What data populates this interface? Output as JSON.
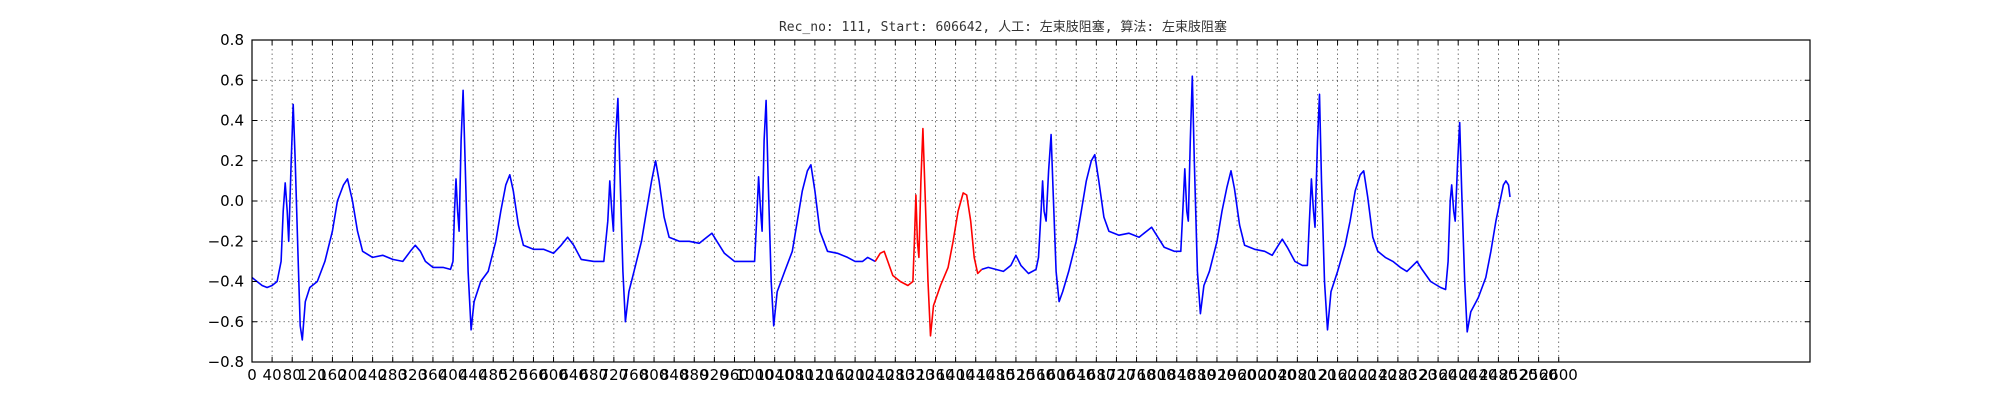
{
  "chart_data": {
    "type": "line",
    "title": "Rec_no: 111, Start: 606642, 人工: 左束肢阻塞, 算法: 左束肢阻塞",
    "xlabel": "",
    "ylabel": "",
    "xlim": [
      0,
      3100
    ],
    "ylim": [
      -0.8,
      0.8
    ],
    "xticks": [
      0,
      40,
      80,
      120,
      160,
      200,
      240,
      280,
      320,
      360,
      400,
      440,
      480,
      520,
      560,
      600,
      640,
      680,
      720,
      760,
      800,
      840,
      880,
      920,
      960,
      1000,
      1040,
      1080,
      1120,
      1160,
      1200,
      1240,
      1280,
      1320,
      1360,
      1400,
      1440,
      1480,
      1520,
      1560,
      1600,
      1640,
      1680,
      1720,
      1760,
      1800,
      1840,
      1880,
      1920,
      1960,
      2000,
      2040,
      2080,
      2120,
      2160,
      2200,
      2240,
      2280,
      2320,
      2360,
      2400,
      2440,
      2480,
      2520,
      2560,
      2600
    ],
    "yticks": [
      -0.8,
      -0.6,
      -0.4,
      -0.2,
      0.0,
      0.2,
      0.4,
      0.6,
      0.8
    ],
    "ytick_labels": [
      "−0.8",
      "−0.6",
      "−0.4",
      "−0.2",
      "0.0",
      "0.2",
      "0.4",
      "0.6",
      "0.8"
    ],
    "grid": true,
    "highlight_range": [
      1240,
      1440
    ],
    "colors": {
      "line": "#0000ff",
      "highlight": "#ff0000",
      "grid": "#555555",
      "axes": "#000000"
    },
    "series": [
      {
        "points": [
          [
            0,
            -0.38
          ],
          [
            10,
            -0.4
          ],
          [
            20,
            -0.42
          ],
          [
            30,
            -0.43
          ],
          [
            40,
            -0.42
          ],
          [
            50,
            -0.4
          ],
          [
            58,
            -0.3
          ],
          [
            62,
            -0.05
          ],
          [
            66,
            0.09
          ],
          [
            70,
            -0.05
          ],
          [
            73,
            -0.2
          ],
          [
            78,
            0.2
          ],
          [
            82,
            0.48
          ],
          [
            86,
            0.2
          ],
          [
            92,
            -0.3
          ],
          [
            96,
            -0.62
          ],
          [
            100,
            -0.69
          ],
          [
            106,
            -0.5
          ],
          [
            115,
            -0.43
          ],
          [
            130,
            -0.4
          ],
          [
            145,
            -0.3
          ],
          [
            160,
            -0.15
          ],
          [
            170,
            0.0
          ],
          [
            182,
            0.08
          ],
          [
            190,
            0.11
          ],
          [
            200,
            0.0
          ],
          [
            210,
            -0.15
          ],
          [
            220,
            -0.25
          ],
          [
            240,
            -0.28
          ],
          [
            260,
            -0.27
          ],
          [
            280,
            -0.29
          ],
          [
            300,
            -0.3
          ],
          [
            315,
            -0.25
          ],
          [
            325,
            -0.22
          ],
          [
            335,
            -0.25
          ],
          [
            345,
            -0.3
          ],
          [
            360,
            -0.33
          ],
          [
            380,
            -0.33
          ],
          [
            395,
            -0.34
          ],
          [
            400,
            -0.3
          ],
          [
            403,
            -0.05
          ],
          [
            406,
            0.11
          ],
          [
            409,
            -0.05
          ],
          [
            412,
            -0.15
          ],
          [
            416,
            0.3
          ],
          [
            420,
            0.55
          ],
          [
            424,
            0.2
          ],
          [
            430,
            -0.35
          ],
          [
            436,
            -0.64
          ],
          [
            442,
            -0.5
          ],
          [
            455,
            -0.4
          ],
          [
            470,
            -0.35
          ],
          [
            485,
            -0.2
          ],
          [
            495,
            -0.05
          ],
          [
            505,
            0.08
          ],
          [
            513,
            0.13
          ],
          [
            520,
            0.05
          ],
          [
            530,
            -0.12
          ],
          [
            540,
            -0.22
          ],
          [
            560,
            -0.24
          ],
          [
            580,
            -0.24
          ],
          [
            600,
            -0.26
          ],
          [
            615,
            -0.22
          ],
          [
            628,
            -0.18
          ],
          [
            640,
            -0.22
          ],
          [
            655,
            -0.29
          ],
          [
            680,
            -0.3
          ],
          [
            700,
            -0.3
          ],
          [
            708,
            -0.1
          ],
          [
            712,
            0.1
          ],
          [
            716,
            -0.05
          ],
          [
            719,
            -0.15
          ],
          [
            723,
            0.3
          ],
          [
            728,
            0.51
          ],
          [
            732,
            0.15
          ],
          [
            738,
            -0.35
          ],
          [
            743,
            -0.6
          ],
          [
            750,
            -0.45
          ],
          [
            760,
            -0.35
          ],
          [
            775,
            -0.2
          ],
          [
            785,
            -0.05
          ],
          [
            795,
            0.1
          ],
          [
            803,
            0.2
          ],
          [
            810,
            0.1
          ],
          [
            820,
            -0.08
          ],
          [
            830,
            -0.18
          ],
          [
            850,
            -0.2
          ],
          [
            870,
            -0.2
          ],
          [
            890,
            -0.21
          ],
          [
            905,
            -0.18
          ],
          [
            915,
            -0.16
          ],
          [
            925,
            -0.2
          ],
          [
            940,
            -0.26
          ],
          [
            960,
            -0.3
          ],
          [
            1000,
            -0.3
          ],
          [
            1004,
            -0.1
          ],
          [
            1008,
            0.12
          ],
          [
            1012,
            -0.05
          ],
          [
            1015,
            -0.15
          ],
          [
            1019,
            0.3
          ],
          [
            1023,
            0.5
          ],
          [
            1027,
            0.1
          ],
          [
            1033,
            -0.4
          ],
          [
            1038,
            -0.62
          ],
          [
            1045,
            -0.45
          ],
          [
            1060,
            -0.35
          ],
          [
            1075,
            -0.25
          ],
          [
            1085,
            -0.1
          ],
          [
            1095,
            0.05
          ],
          [
            1105,
            0.15
          ],
          [
            1112,
            0.18
          ],
          [
            1120,
            0.05
          ],
          [
            1130,
            -0.15
          ],
          [
            1145,
            -0.25
          ],
          [
            1165,
            -0.26
          ],
          [
            1185,
            -0.28
          ],
          [
            1200,
            -0.3
          ],
          [
            1215,
            -0.3
          ],
          [
            1225,
            -0.28
          ],
          [
            1240,
            -0.3
          ]
        ]
      },
      {
        "name": "highlight",
        "points": [
          [
            1240,
            -0.3
          ],
          [
            1250,
            -0.26
          ],
          [
            1258,
            -0.25
          ],
          [
            1265,
            -0.3
          ],
          [
            1275,
            -0.37
          ],
          [
            1290,
            -0.4
          ],
          [
            1305,
            -0.42
          ],
          [
            1315,
            -0.4
          ],
          [
            1318,
            -0.2
          ],
          [
            1321,
            0.03
          ],
          [
            1324,
            -0.2
          ],
          [
            1327,
            -0.28
          ],
          [
            1331,
            0.1
          ],
          [
            1335,
            0.36
          ],
          [
            1339,
            0.05
          ],
          [
            1345,
            -0.4
          ],
          [
            1350,
            -0.67
          ],
          [
            1356,
            -0.52
          ],
          [
            1370,
            -0.42
          ],
          [
            1385,
            -0.33
          ],
          [
            1395,
            -0.2
          ],
          [
            1405,
            -0.05
          ],
          [
            1415,
            0.04
          ],
          [
            1422,
            0.03
          ],
          [
            1430,
            -0.1
          ],
          [
            1437,
            -0.28
          ],
          [
            1444,
            -0.36
          ],
          [
            1452,
            -0.34
          ]
        ]
      },
      {
        "points": [
          [
            1452,
            -0.34
          ],
          [
            1465,
            -0.33
          ],
          [
            1480,
            -0.34
          ],
          [
            1495,
            -0.35
          ],
          [
            1510,
            -0.32
          ],
          [
            1520,
            -0.27
          ],
          [
            1530,
            -0.32
          ],
          [
            1545,
            -0.36
          ],
          [
            1560,
            -0.34
          ],
          [
            1565,
            -0.28
          ],
          [
            1570,
            -0.05
          ],
          [
            1573,
            0.1
          ],
          [
            1576,
            -0.05
          ],
          [
            1580,
            -0.1
          ],
          [
            1585,
            0.15
          ],
          [
            1590,
            0.33
          ],
          [
            1594,
            0.05
          ],
          [
            1600,
            -0.35
          ],
          [
            1606,
            -0.5
          ],
          [
            1613,
            -0.45
          ],
          [
            1625,
            -0.35
          ],
          [
            1640,
            -0.2
          ],
          [
            1650,
            -0.05
          ],
          [
            1660,
            0.1
          ],
          [
            1670,
            0.2
          ],
          [
            1677,
            0.23
          ],
          [
            1685,
            0.1
          ],
          [
            1695,
            -0.08
          ],
          [
            1705,
            -0.15
          ],
          [
            1725,
            -0.17
          ],
          [
            1745,
            -0.16
          ],
          [
            1765,
            -0.18
          ],
          [
            1780,
            -0.15
          ],
          [
            1790,
            -0.13
          ],
          [
            1800,
            -0.17
          ],
          [
            1815,
            -0.23
          ],
          [
            1835,
            -0.25
          ],
          [
            1848,
            -0.25
          ],
          [
            1852,
            -0.05
          ],
          [
            1856,
            0.16
          ],
          [
            1860,
            -0.05
          ],
          [
            1863,
            -0.1
          ],
          [
            1867,
            0.3
          ],
          [
            1871,
            0.62
          ],
          [
            1875,
            0.2
          ],
          [
            1881,
            -0.35
          ],
          [
            1887,
            -0.56
          ],
          [
            1894,
            -0.42
          ],
          [
            1905,
            -0.35
          ],
          [
            1920,
            -0.2
          ],
          [
            1930,
            -0.05
          ],
          [
            1940,
            0.07
          ],
          [
            1948,
            0.15
          ],
          [
            1955,
            0.06
          ],
          [
            1965,
            -0.12
          ],
          [
            1975,
            -0.22
          ],
          [
            1995,
            -0.24
          ],
          [
            2015,
            -0.25
          ],
          [
            2030,
            -0.27
          ],
          [
            2042,
            -0.22
          ],
          [
            2050,
            -0.19
          ],
          [
            2060,
            -0.23
          ],
          [
            2075,
            -0.3
          ],
          [
            2090,
            -0.32
          ],
          [
            2100,
            -0.32
          ],
          [
            2104,
            -0.1
          ],
          [
            2108,
            0.11
          ],
          [
            2112,
            -0.05
          ],
          [
            2115,
            -0.13
          ],
          [
            2120,
            0.3
          ],
          [
            2124,
            0.53
          ],
          [
            2128,
            0.1
          ],
          [
            2134,
            -0.4
          ],
          [
            2140,
            -0.64
          ],
          [
            2147,
            -0.45
          ],
          [
            2160,
            -0.35
          ],
          [
            2175,
            -0.22
          ],
          [
            2185,
            -0.1
          ],
          [
            2195,
            0.05
          ],
          [
            2205,
            0.13
          ],
          [
            2212,
            0.15
          ],
          [
            2220,
            0.02
          ],
          [
            2230,
            -0.18
          ],
          [
            2240,
            -0.25
          ],
          [
            2255,
            -0.28
          ],
          [
            2270,
            -0.3
          ],
          [
            2285,
            -0.33
          ],
          [
            2298,
            -0.35
          ],
          [
            2310,
            -0.32
          ],
          [
            2318,
            -0.3
          ],
          [
            2328,
            -0.34
          ],
          [
            2345,
            -0.4
          ],
          [
            2365,
            -0.43
          ],
          [
            2375,
            -0.44
          ],
          [
            2380,
            -0.3
          ],
          [
            2384,
            0.0
          ],
          [
            2387,
            0.08
          ],
          [
            2391,
            -0.05
          ],
          [
            2394,
            -0.1
          ],
          [
            2399,
            0.2
          ],
          [
            2403,
            0.39
          ],
          [
            2407,
            0.05
          ],
          [
            2413,
            -0.4
          ],
          [
            2418,
            -0.65
          ],
          [
            2425,
            -0.55
          ],
          [
            2440,
            -0.48
          ],
          [
            2455,
            -0.38
          ],
          [
            2465,
            -0.25
          ],
          [
            2475,
            -0.1
          ],
          [
            2485,
            0.02
          ],
          [
            2490,
            0.08
          ],
          [
            2495,
            0.1
          ],
          [
            2500,
            0.08
          ],
          [
            2503,
            0.02
          ]
        ]
      }
    ]
  }
}
